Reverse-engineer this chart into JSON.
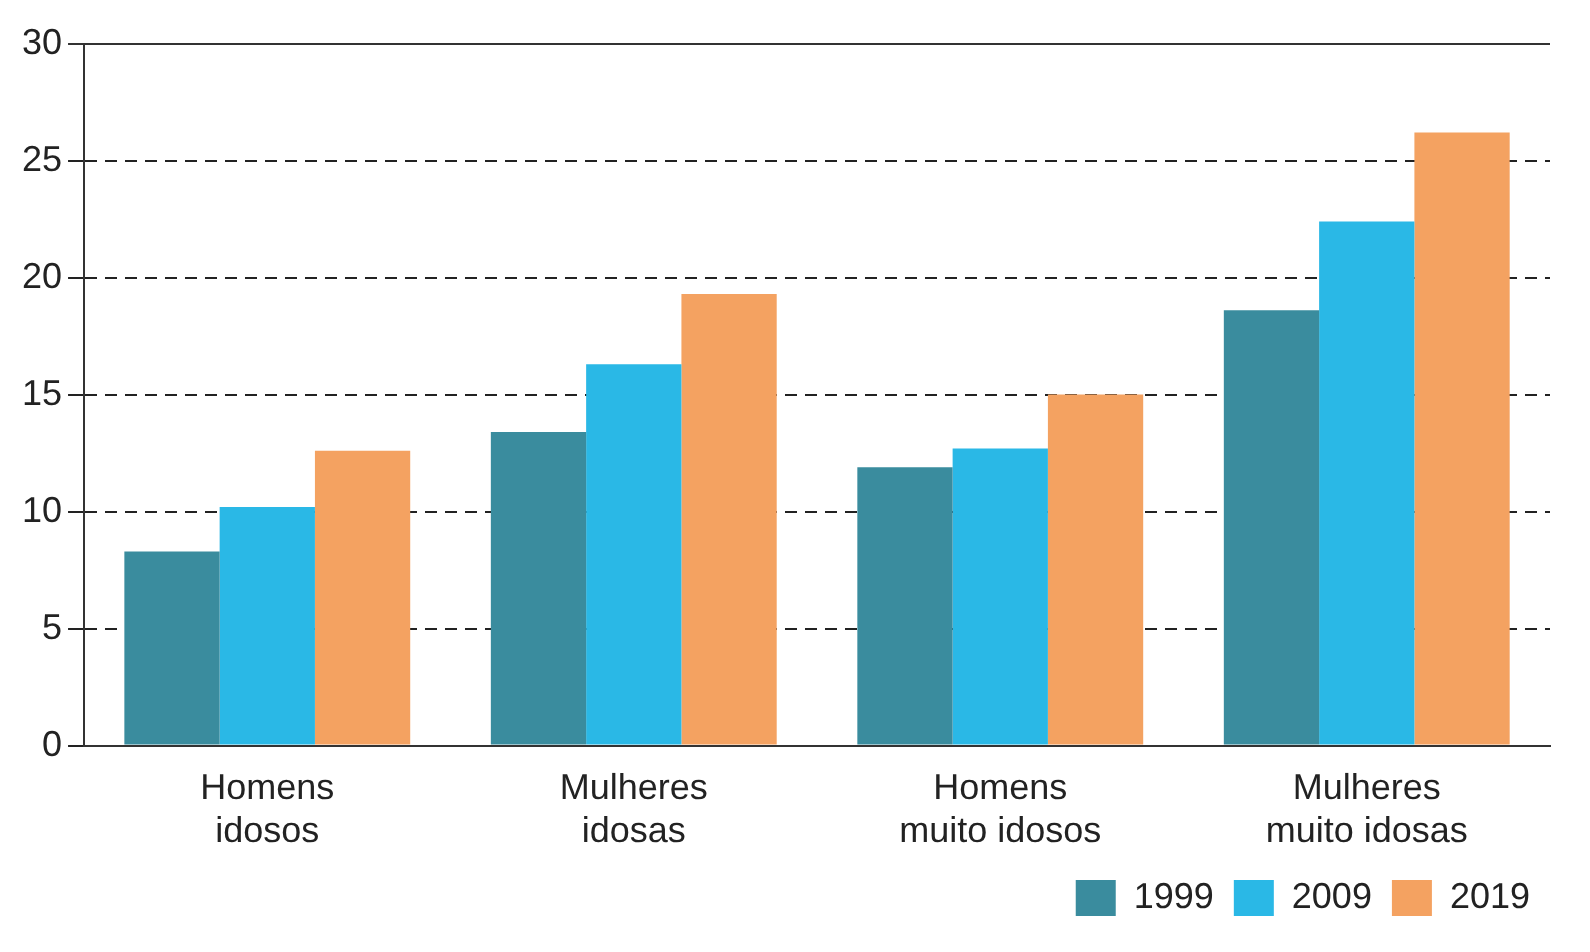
{
  "chart_data": {
    "type": "bar",
    "categories": [
      "Homens idosos",
      "Mulheres idosas",
      "Homens muito idosos",
      "Mulheres muito idosas"
    ],
    "series": [
      {
        "name": "1999",
        "color": "#3a8c9e",
        "values": [
          8.3,
          13.4,
          11.9,
          18.6
        ]
      },
      {
        "name": "2009",
        "color": "#2ab8e6",
        "values": [
          10.2,
          16.3,
          12.7,
          22.4
        ]
      },
      {
        "name": "2019",
        "color": "#f4a261",
        "values": [
          12.6,
          19.3,
          15.0,
          26.2
        ]
      }
    ],
    "ylim": [
      0,
      30
    ],
    "yticks": [
      0,
      5,
      10,
      15,
      20,
      25,
      30
    ],
    "grid": "y",
    "legend": "bottom right"
  }
}
